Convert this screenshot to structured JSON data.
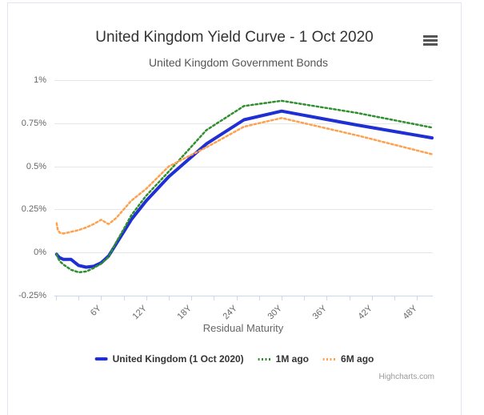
{
  "chart": {
    "title": "United Kingdom Yield Curve - 1 Oct 2020",
    "subtitle": "United Kingdom Government Bonds",
    "credits": "Highcharts.com",
    "menu_icon": "hamburger-icon"
  },
  "colors": {
    "current_curve": "#1f2fd3",
    "one_month_ago": "#2f8f2f",
    "six_month_ago": "#ffa04d",
    "gridline": "#e6e6e6",
    "axis": "#ccd6eb",
    "title_text": "#333333",
    "label_text": "#666666",
    "credits_text": "#999999",
    "card_border": "#e4e4f2"
  },
  "chart_data": {
    "type": "line",
    "title": "United Kingdom Yield Curve - 1 Oct 2020",
    "subtitle": "United Kingdom Government Bonds",
    "xlabel": "Residual Maturity",
    "ylabel": "",
    "x_unit": "years",
    "xlim": [
      0,
      50
    ],
    "ylim": [
      -0.25,
      1
    ],
    "grid": true,
    "legend_position": "bottom",
    "y_axis": {
      "ticks": [
        {
          "value": 1,
          "label": "1%"
        },
        {
          "value": 0.75,
          "label": "0.75%"
        },
        {
          "value": 0.5,
          "label": "0.5%"
        },
        {
          "value": 0.25,
          "label": "0.25%"
        },
        {
          "value": 0,
          "label": "0%"
        },
        {
          "value": -0.25,
          "label": "-0.25%"
        }
      ]
    },
    "x_axis": {
      "title": "Residual Maturity",
      "tick_values": [
        0,
        3,
        6,
        9,
        12,
        15,
        18,
        21,
        24,
        27,
        30,
        33,
        36,
        39,
        42,
        45,
        48
      ],
      "labeled_ticks": [
        {
          "value": 6,
          "label": "6Y"
        },
        {
          "value": 12,
          "label": "12Y"
        },
        {
          "value": 18,
          "label": "18Y"
        },
        {
          "value": 24,
          "label": "24Y"
        },
        {
          "value": 30,
          "label": "30Y"
        },
        {
          "value": 36,
          "label": "36Y"
        },
        {
          "value": 42,
          "label": "42Y"
        },
        {
          "value": 48,
          "label": "48Y"
        }
      ]
    },
    "x": [
      0.08,
      0.25,
      0.5,
      1,
      2,
      3,
      4,
      5,
      6,
      7,
      8,
      9,
      10,
      12,
      15,
      20,
      25,
      30,
      40,
      50
    ],
    "series": [
      {
        "name": "United Kingdom (1 Oct 2020)",
        "color": "#1f2fd3",
        "dash": "solid",
        "width": 4,
        "values": [
          -0.01,
          -0.02,
          -0.03,
          -0.04,
          -0.04,
          -0.075,
          -0.085,
          -0.08,
          -0.06,
          -0.02,
          0.05,
          0.12,
          0.19,
          0.3,
          0.44,
          0.63,
          0.77,
          0.82,
          0.74,
          0.665
        ]
      },
      {
        "name": "1M ago",
        "color": "#2f8f2f",
        "dash": "dot",
        "width": 2.5,
        "values": [
          -0.01,
          -0.03,
          -0.05,
          -0.07,
          -0.1,
          -0.115,
          -0.11,
          -0.09,
          -0.065,
          -0.025,
          0.06,
          0.135,
          0.215,
          0.33,
          0.47,
          0.71,
          0.85,
          0.88,
          0.81,
          0.725
        ]
      },
      {
        "name": "6M ago",
        "color": "#ffa04d",
        "dash": "dot",
        "width": 2.5,
        "values": [
          0.17,
          0.13,
          0.115,
          0.11,
          0.12,
          0.13,
          0.145,
          0.165,
          0.19,
          0.165,
          0.2,
          0.25,
          0.3,
          0.37,
          0.5,
          0.61,
          0.73,
          0.78,
          0.68,
          0.57
        ]
      }
    ]
  }
}
